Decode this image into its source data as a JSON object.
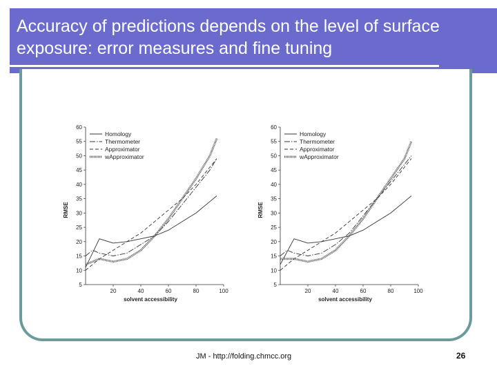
{
  "slide": {
    "title": "Accuracy of predictions depends on the level of surface exposure: error measures and fine tuning",
    "footer": "JM - http://folding.chmcc.org",
    "page_number": "26",
    "colors": {
      "header": "#6b6bce",
      "frame": "#6d9a9a",
      "title_text": "#ffffff"
    }
  },
  "chart_data": [
    {
      "type": "line",
      "title": "",
      "xlabel": "solvent accessibility",
      "ylabel": "RMSE",
      "xlim": [
        0,
        100
      ],
      "ylim": [
        5,
        60
      ],
      "xticks": [
        20,
        40,
        60,
        80,
        100
      ],
      "yticks": [
        5,
        10,
        15,
        20,
        25,
        30,
        35,
        40,
        45,
        50,
        55,
        60
      ],
      "grid": false,
      "legend": "top-left",
      "series": [
        {
          "name": "Homology",
          "x": [
            0,
            10,
            20,
            30,
            40,
            50,
            60,
            70,
            80,
            90,
            95
          ],
          "y": [
            11,
            21,
            19.5,
            20,
            21,
            22,
            24,
            27,
            30,
            34,
            36
          ]
        },
        {
          "name": "Thermometer",
          "x": [
            0,
            5,
            10,
            20,
            30,
            40,
            50,
            60,
            70,
            80,
            90,
            95
          ],
          "y": [
            15,
            17,
            16,
            15,
            16,
            19,
            22,
            27,
            33,
            39,
            45,
            49
          ]
        },
        {
          "name": "Approximator",
          "x": [
            0,
            10,
            20,
            30,
            40,
            50,
            60,
            70,
            80,
            90,
            95
          ],
          "y": [
            10,
            14,
            17,
            20,
            23,
            27,
            31,
            35,
            40,
            46,
            49
          ]
        },
        {
          "name": "wApproximator",
          "x": [
            0,
            10,
            20,
            30,
            40,
            50,
            60,
            70,
            80,
            90,
            95
          ],
          "y": [
            12,
            14,
            13,
            14,
            17,
            22,
            28,
            35,
            42,
            50,
            56
          ]
        }
      ]
    },
    {
      "type": "line",
      "title": "",
      "xlabel": "solvent accessibility",
      "ylabel": "RMSE",
      "xlim": [
        0,
        100
      ],
      "ylim": [
        5,
        60
      ],
      "xticks": [
        20,
        40,
        60,
        80,
        100
      ],
      "yticks": [
        5,
        10,
        15,
        20,
        25,
        30,
        35,
        40,
        45,
        50,
        55,
        60
      ],
      "grid": false,
      "legend": "top-left",
      "series": [
        {
          "name": "Homology",
          "x": [
            0,
            10,
            20,
            30,
            40,
            50,
            60,
            70,
            80,
            90,
            95
          ],
          "y": [
            12,
            21,
            19.5,
            20,
            21,
            22,
            24,
            27,
            30,
            34,
            36
          ]
        },
        {
          "name": "Thermometer",
          "x": [
            0,
            5,
            10,
            20,
            30,
            40,
            50,
            60,
            70,
            80,
            90,
            95
          ],
          "y": [
            15,
            17,
            16,
            15,
            16,
            19,
            23,
            29,
            35,
            41,
            47,
            50
          ]
        },
        {
          "name": "Approximator",
          "x": [
            0,
            10,
            20,
            30,
            40,
            50,
            60,
            70,
            80,
            90,
            95
          ],
          "y": [
            10,
            14,
            17,
            20,
            23,
            27,
            31,
            35,
            40,
            46,
            49
          ]
        },
        {
          "name": "wApproximator",
          "x": [
            0,
            10,
            20,
            30,
            40,
            50,
            60,
            70,
            80,
            90,
            95
          ],
          "y": [
            14,
            14,
            13,
            14,
            17,
            22,
            28,
            35,
            42,
            49,
            55
          ]
        }
      ]
    }
  ]
}
